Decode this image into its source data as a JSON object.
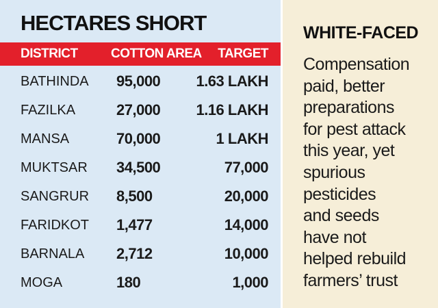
{
  "table": {
    "title": "HECTARES SHORT",
    "header": [
      "DISTRICT",
      "COTTON AREA",
      "TARGET"
    ],
    "rows": [
      [
        "BATHINDA",
        "95,000",
        "1.63 LAKH"
      ],
      [
        "FAZILKA",
        "27,000",
        "1.16 LAKH"
      ],
      [
        "MANSA",
        "70,000",
        "1 LAKH"
      ],
      [
        "MUKTSAR",
        "34,500",
        "77,000"
      ],
      [
        "SANGRUR",
        "8,500",
        "20,000"
      ],
      [
        "FARIDKOT",
        "1,477",
        "14,000"
      ],
      [
        "BARNALA",
        "2,712",
        "10,000"
      ],
      [
        "MOGA",
        "180",
        "1,000"
      ]
    ]
  },
  "sidebar": {
    "title": "WHITE-FACED",
    "lines": [
      "Compensation",
      "paid, better",
      "preparations",
      "for pest attack",
      "this year, yet",
      "spurious",
      "pesticides",
      "and seeds",
      "have not",
      "helped rebuild",
      "farmers’ trust"
    ]
  }
}
